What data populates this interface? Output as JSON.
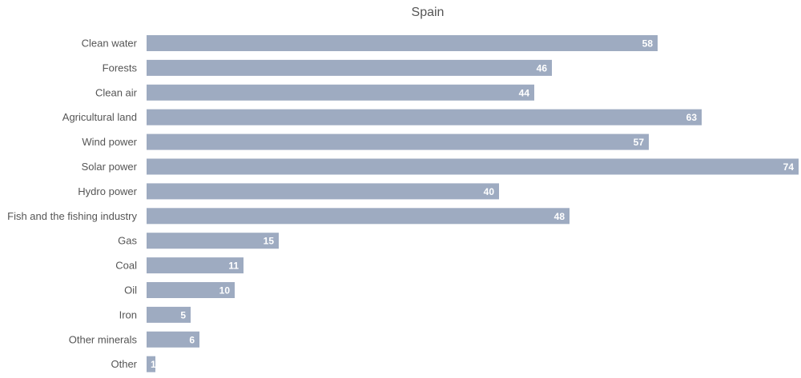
{
  "chart_data": {
    "type": "bar",
    "orientation": "horizontal",
    "title": "Spain",
    "categories": [
      "Clean water",
      "Forests",
      "Clean air",
      "Agricultural land",
      "Wind power",
      "Solar power",
      "Hydro power",
      "Fish and the fishing industry",
      "Gas",
      "Coal",
      "Oil",
      "Iron",
      "Other minerals",
      "Other"
    ],
    "values": [
      58,
      46,
      44,
      63,
      57,
      74,
      40,
      48,
      15,
      11,
      10,
      5,
      6,
      1
    ],
    "xlim": [
      0,
      74
    ],
    "grid": false,
    "legend": "none",
    "bar_color": "#9eabc1",
    "label_color": "#ffffff"
  }
}
